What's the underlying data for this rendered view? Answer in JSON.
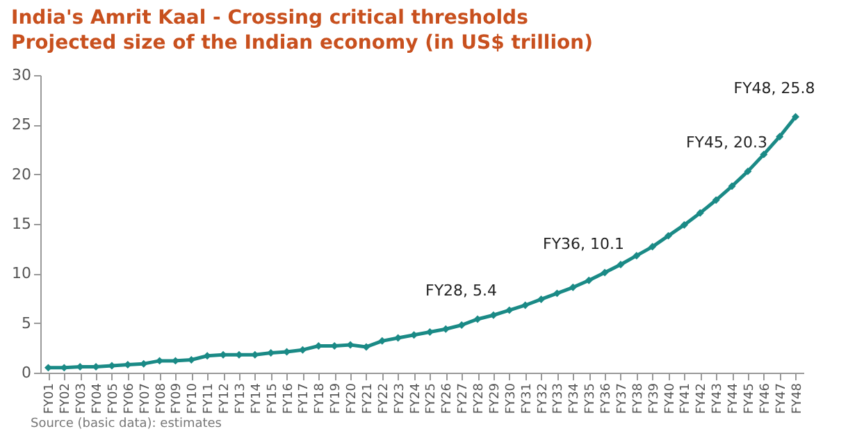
{
  "chart_data": {
    "type": "line",
    "title": "India's Amrit Kaal - Crossing critical thresholds",
    "subtitle": "Projected size of the Indian economy (in US$ trillion)",
    "categories": [
      "FY01",
      "FY02",
      "FY03",
      "FY04",
      "FY05",
      "FY06",
      "FY07",
      "FY08",
      "FY09",
      "FY10",
      "FY11",
      "FY12",
      "FY13",
      "FY14",
      "FY15",
      "FY16",
      "FY17",
      "FY18",
      "FY19",
      "FY20",
      "FY21",
      "FY22",
      "FY23",
      "FY24",
      "FY25",
      "FY26",
      "FY27",
      "FY28",
      "FY29",
      "FY30",
      "FY31",
      "FY32",
      "FY33",
      "FY34",
      "FY35",
      "FY36",
      "FY37",
      "FY38",
      "FY39",
      "FY40",
      "FY41",
      "FY42",
      "FY43",
      "FY44",
      "FY45",
      "FY46",
      "FY47",
      "FY48"
    ],
    "series": [
      {
        "color": "#1a8a86",
        "values": [
          0.5,
          0.5,
          0.6,
          0.6,
          0.7,
          0.8,
          0.9,
          1.2,
          1.2,
          1.3,
          1.7,
          1.8,
          1.8,
          1.8,
          2.0,
          2.1,
          2.3,
          2.7,
          2.7,
          2.8,
          2.6,
          3.2,
          3.5,
          3.8,
          4.1,
          4.4,
          4.8,
          5.4,
          5.8,
          6.3,
          6.8,
          7.4,
          8.0,
          8.6,
          9.3,
          10.1,
          10.9,
          11.8,
          12.7,
          13.8,
          14.9,
          16.1,
          17.4,
          18.8,
          20.3,
          22.0,
          23.8,
          25.8
        ]
      }
    ],
    "ylim": [
      0,
      30
    ],
    "yticks": [
      0,
      5,
      10,
      15,
      20,
      25,
      30
    ],
    "grid": false,
    "marker": "diamond",
    "line_style": "solid",
    "annotations": [
      {
        "text": "FY28, 5.4",
        "x": "FY28",
        "y": 5.4
      },
      {
        "text": "FY36, 10.1",
        "x": "FY36",
        "y": 10.1
      },
      {
        "text": "FY45, 20.3",
        "x": "FY45",
        "y": 20.3
      },
      {
        "text": "FY48, 25.8",
        "x": "FY48",
        "y": 25.8
      },
      "Source (basic data): estimates"
    ]
  }
}
